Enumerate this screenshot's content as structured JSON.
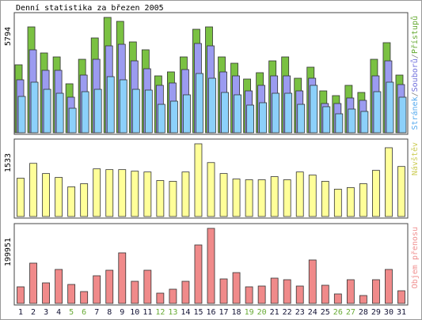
{
  "title": "Denní statistika za březen 2005",
  "categories": [
    "1",
    "2",
    "3",
    "4",
    "5",
    "6",
    "7",
    "8",
    "9",
    "10",
    "11",
    "12",
    "13",
    "14",
    "15",
    "16",
    "17",
    "18",
    "19",
    "20",
    "21",
    "22",
    "23",
    "24",
    "25",
    "26",
    "27",
    "28",
    "29",
    "30",
    "31"
  ],
  "category_colors": [
    "#111133",
    "#111133",
    "#111133",
    "#111133",
    "#66aa33",
    "#66aa33",
    "#111133",
    "#111133",
    "#111133",
    "#111133",
    "#111133",
    "#66aa33",
    "#66aa33",
    "#111133",
    "#111133",
    "#111133",
    "#111133",
    "#111133",
    "#66aa33",
    "#66aa33",
    "#111133",
    "#111133",
    "#111133",
    "#111133",
    "#111133",
    "#66aa33",
    "#66aa33",
    "#111133",
    "#111133",
    "#111133",
    "#111133"
  ],
  "chart_data": [
    {
      "type": "bar",
      "ylim": [
        0,
        5794
      ],
      "yticks": [
        5794
      ],
      "legend_separator": "/",
      "series": [
        {
          "name": "Přístupů",
          "color": "#7ac142",
          "text_color": "#66aa33",
          "values": [
            3413,
            5317,
            4008,
            3809,
            2460,
            3690,
            4762,
            5794,
            5595,
            4563,
            4167,
            2857,
            3056,
            3809,
            5198,
            5317,
            3809,
            3492,
            2698,
            3016,
            3611,
            3809,
            2738,
            3294,
            2103,
            1865,
            2381,
            2024,
            3690,
            4524,
            2897
          ]
        },
        {
          "name": "Souborů",
          "color": "#9b9bf0",
          "text_color": "#7070dd",
          "values": [
            2659,
            4166,
            3135,
            3135,
            1786,
            2897,
            3690,
            4365,
            4444,
            3611,
            3214,
            2381,
            2500,
            3174,
            4484,
            4365,
            3055,
            2857,
            2103,
            2381,
            2857,
            2857,
            2103,
            2738,
            1468,
            1468,
            1746,
            1627,
            2857,
            3611,
            2420
          ]
        },
        {
          "name": "Stránek",
          "color": "#8cd0fa",
          "text_color": "#55aaee",
          "values": [
            1825,
            2540,
            2182,
            1984,
            1230,
            2063,
            2182,
            2817,
            2659,
            2182,
            2143,
            1428,
            1587,
            1905,
            2976,
            2738,
            2024,
            1905,
            1389,
            1508,
            1984,
            1984,
            1428,
            2381,
            1309,
            952,
            1190,
            1071,
            2063,
            2540,
            1786
          ]
        }
      ]
    },
    {
      "type": "bar",
      "ylim": [
        0,
        1533
      ],
      "yticks": [
        1533
      ],
      "series": [
        {
          "name": "Návštěv",
          "color": "#ffff99",
          "text_color": "#cccc55",
          "values": [
            808,
            1121,
            906,
            824,
            626,
            692,
            1005,
            989,
            989,
            956,
            939,
            758,
            742,
            939,
            1533,
            1137,
            906,
            791,
            775,
            775,
            841,
            775,
            939,
            874,
            742,
            577,
            610,
            692,
            973,
            1450,
            1055
          ]
        }
      ]
    },
    {
      "type": "bar",
      "ylim": [
        0,
        199951
      ],
      "yticks": [
        199951
      ],
      "series": [
        {
          "name": "Objem přenosu",
          "color": "#f08a8a",
          "text_color": "#f09090",
          "values": [
            44199,
            107340,
            54722,
            90502,
            50513,
            31571,
            73665,
            88398,
            134701,
            58932,
            88398,
            27361,
            37885,
            58932,
            155748,
            199951,
            65246,
            82083,
            44199,
            46303,
            67350,
            63141,
            46303,
            115759,
            48408,
            25256,
            63141,
            21047,
            63141,
            90502,
            33675
          ]
        }
      ]
    }
  ]
}
